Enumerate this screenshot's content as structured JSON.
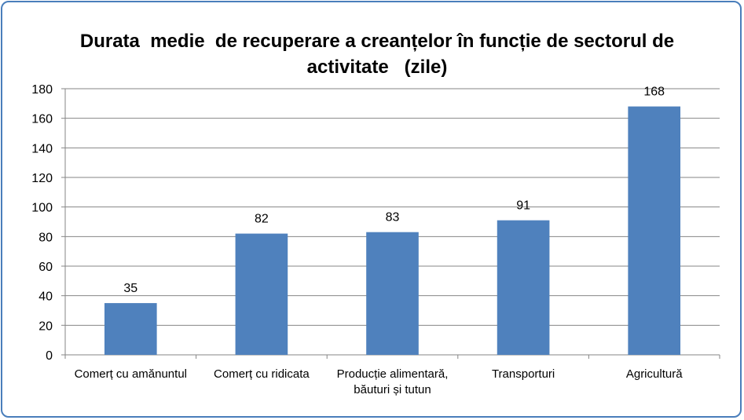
{
  "chart_data": {
    "type": "bar",
    "title": "Durata  medie  de recuperare a creanțelor în funcție de sectorul de\nactivitate   (zile)",
    "categories": [
      [
        "Comerț cu amănuntul"
      ],
      [
        "Comerț cu ridicata"
      ],
      [
        "Producție alimentară,",
        "băuturi și tutun"
      ],
      [
        "Transporturi"
      ],
      [
        "Agricultură"
      ]
    ],
    "values": [
      35,
      82,
      83,
      91,
      168
    ],
    "data_labels": [
      "35",
      "82",
      "83",
      "91",
      "168"
    ],
    "ylim": [
      0,
      180
    ],
    "yticks": [
      0,
      20,
      40,
      60,
      80,
      100,
      120,
      140,
      160,
      180
    ],
    "grid": true,
    "legend": "none",
    "colors": {
      "bar": "#4f81bd",
      "grid": "#868686",
      "frame": "#4a7ebb"
    }
  }
}
